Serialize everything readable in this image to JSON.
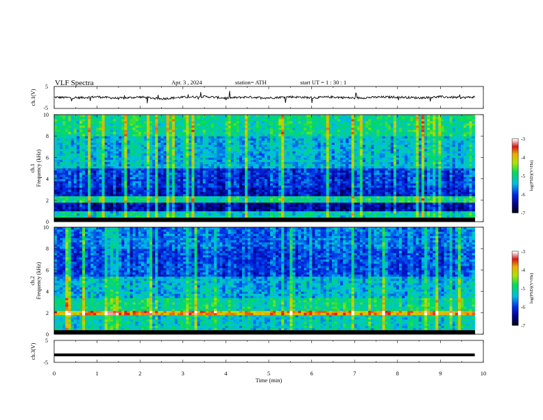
{
  "header": {
    "title": "VLF  Spectra",
    "date": "Apr. 3  , 2024",
    "station": "station= ATH",
    "start_ut": "start  UT  =   1  : 30 : 1"
  },
  "chart_data": [
    {
      "type": "line",
      "panel": "ch1-waveform",
      "ylabel": "ch.1(V)",
      "ylim": [
        -5,
        5
      ],
      "yticks": [
        "5",
        "-5"
      ],
      "xlim": [
        0,
        10
      ],
      "color": "#000000",
      "x": [
        0,
        0.5,
        1,
        1.5,
        2,
        2.5,
        3,
        3.5,
        4,
        4.5,
        5,
        5.5,
        6,
        6.5,
        7,
        7.5,
        8,
        8.5,
        9,
        9.5,
        9.8
      ],
      "values": [
        0.1,
        -0.2,
        0.3,
        -0.4,
        0.2,
        -0.6,
        0.1,
        0.4,
        -0.3,
        0.2,
        -0.2,
        0.3,
        -0.1,
        0.2,
        -0.3,
        0.1,
        0.2,
        -0.2,
        0.3,
        -0.1,
        0.2
      ]
    },
    {
      "type": "heatmap",
      "panel": "ch1-spectrogram",
      "ylabel": "ch.1\nFrequency  (kHz)",
      "ylim": [
        0,
        10
      ],
      "yticks": [
        "0",
        "2",
        "4",
        "6",
        "8",
        "10"
      ],
      "xlim": [
        0,
        9.8
      ],
      "colorbar": {
        "label": "log(PSD)(V²/Hz)",
        "range": [
          -7,
          -3
        ],
        "ticks": [
          "-3",
          "-4",
          "-5",
          "-6",
          "-7"
        ]
      },
      "bands": [
        {
          "f0": 0,
          "f1": 0.5,
          "level": -7
        },
        {
          "f0": 0.5,
          "f1": 1.0,
          "level": -5.2
        },
        {
          "f0": 1.0,
          "f1": 1.8,
          "level": -6.4
        },
        {
          "f0": 1.8,
          "f1": 2.4,
          "level": -5.0
        },
        {
          "f0": 2.4,
          "f1": 3.2,
          "level": -6.2
        },
        {
          "f0": 3.2,
          "f1": 5.0,
          "level": -6.0
        },
        {
          "f0": 5.0,
          "f1": 8.0,
          "level": -5.4
        },
        {
          "f0": 8.0,
          "f1": 10.0,
          "level": -5.0
        }
      ]
    },
    {
      "type": "heatmap",
      "panel": "ch2-spectrogram",
      "ylabel": "ch.2\nFrequency  (kHz)",
      "ylim": [
        0,
        10
      ],
      "yticks": [
        "0",
        "2",
        "4",
        "6",
        "8",
        "10"
      ],
      "xlim": [
        0,
        9.8
      ],
      "colorbar": {
        "label": "log(PSD)(V²/Hz)",
        "range": [
          -7,
          -3
        ],
        "ticks": [
          "-3",
          "-4",
          "-5",
          "-6",
          "-7"
        ]
      },
      "bands": [
        {
          "f0": 0,
          "f1": 0.5,
          "level": -7
        },
        {
          "f0": 0.5,
          "f1": 1.8,
          "level": -5.2
        },
        {
          "f0": 1.8,
          "f1": 2.2,
          "level": -3.8
        },
        {
          "f0": 2.2,
          "f1": 3.4,
          "level": -5.0
        },
        {
          "f0": 3.4,
          "f1": 5.5,
          "level": -5.4
        },
        {
          "f0": 5.5,
          "f1": 8.0,
          "level": -5.9
        },
        {
          "f0": 8.0,
          "f1": 10.0,
          "level": -5.7
        }
      ]
    },
    {
      "type": "line",
      "panel": "ch3-waveform",
      "ylabel": "ch.3(V)",
      "xlabel": "Time  (min)",
      "ylim": [
        -5,
        5
      ],
      "yticks": [
        "5",
        "-5"
      ],
      "xlim": [
        0,
        10
      ],
      "xticks": [
        "0",
        "1",
        "2",
        "3",
        "4",
        "5",
        "6",
        "7",
        "8",
        "9",
        "10"
      ],
      "color": "#000000",
      "x": [
        0,
        9.8
      ],
      "values": [
        -1.6,
        -1.6
      ]
    }
  ]
}
